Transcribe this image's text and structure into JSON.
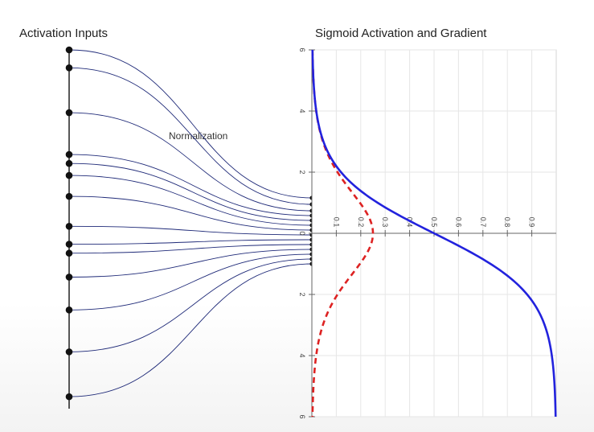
{
  "titles": {
    "left": "Activation Inputs",
    "right": "Sigmoid Activation and Gradient",
    "annotation": "Normalization"
  },
  "colors": {
    "sigmoid": "#2222dd",
    "gradient": "#dd2222",
    "connection": "#1f2a78",
    "grid": "#e6e6e6"
  },
  "chart_data": {
    "type": "line",
    "orientation": "rotated: input runs top-to-bottom, output runs left-to-right",
    "input_axis": {
      "range": [
        -6,
        6
      ],
      "ticks": [
        "6",
        "4",
        "2",
        "0",
        "2",
        "4",
        "6"
      ]
    },
    "output_axis": {
      "range": [
        0,
        1
      ],
      "ticks": [
        "0.1",
        "0.2",
        "0.3",
        "0.4",
        "0.5",
        "0.6",
        "0.7",
        "0.8",
        "0.9"
      ]
    },
    "grid": true,
    "series": [
      {
        "line_style": "solid",
        "color": "#2222dd",
        "x": [
          -6,
          -5,
          -4,
          -3,
          -2,
          -1,
          0,
          1,
          2,
          3,
          4,
          5,
          6
        ],
        "y": [
          0.002,
          0.007,
          0.018,
          0.047,
          0.119,
          0.269,
          0.5,
          0.731,
          0.881,
          0.953,
          0.982,
          0.993,
          0.998
        ]
      },
      {
        "line_style": "dashed",
        "color": "#dd2222",
        "x": [
          -6,
          -5,
          -4,
          -3,
          -2,
          -1,
          0,
          1,
          2,
          3,
          4,
          5,
          6
        ],
        "y": [
          0.002,
          0.007,
          0.018,
          0.045,
          0.105,
          0.197,
          0.25,
          0.197,
          0.105,
          0.045,
          0.018,
          0.007,
          0.002
        ]
      }
    ]
  },
  "network": {
    "input_values": [
      -6.0,
      -5.4,
      -3.9,
      -2.5,
      -2.2,
      -1.8,
      -1.1,
      -0.1,
      0.5,
      0.8,
      1.6,
      2.7,
      4.1,
      5.6
    ],
    "normalized_values": [
      -1.1,
      -0.9,
      -0.7,
      -0.55,
      -0.4,
      -0.25,
      -0.1,
      0.05,
      0.2,
      0.35,
      0.5,
      0.65,
      0.8,
      0.95
    ]
  }
}
